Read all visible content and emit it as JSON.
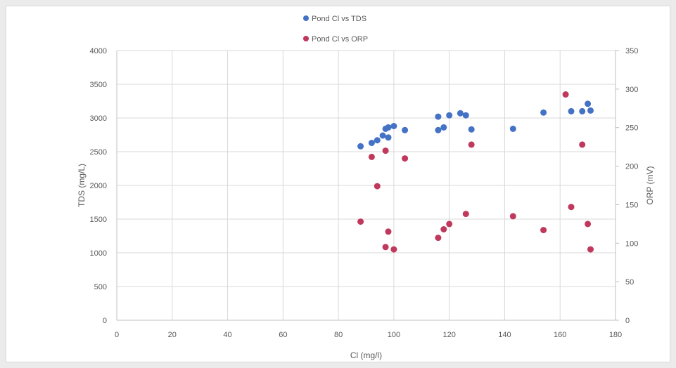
{
  "chart_data": {
    "type": "scatter",
    "xlabel": "Cl (mg/l)",
    "ylabel": "TDS (mg/L)",
    "y2label": "ORP (mV)",
    "xlim": [
      0,
      180
    ],
    "ylim": [
      0,
      4000
    ],
    "y2lim": [
      0,
      350
    ],
    "xticks": [
      "0",
      "20",
      "40",
      "60",
      "80",
      "100",
      "120",
      "140",
      "160",
      "180"
    ],
    "yticks": [
      "0",
      "500",
      "1000",
      "1500",
      "2000",
      "2500",
      "3000",
      "3500",
      "4000"
    ],
    "y2ticks": [
      "0",
      "50",
      "100",
      "150",
      "200",
      "250",
      "300",
      "350"
    ],
    "grid": true,
    "legend_position": "top-center",
    "series": [
      {
        "name": "Pond Cl vs TDS",
        "axis": "left",
        "color": "#4472c4",
        "points": [
          [
            88,
            2580
          ],
          [
            92,
            2630
          ],
          [
            94,
            2670
          ],
          [
            96,
            2740
          ],
          [
            97,
            2840
          ],
          [
            98,
            2860
          ],
          [
            98,
            2710
          ],
          [
            100,
            2880
          ],
          [
            104,
            2820
          ],
          [
            116,
            2820
          ],
          [
            116,
            3020
          ],
          [
            118,
            2860
          ],
          [
            120,
            3040
          ],
          [
            124,
            3070
          ],
          [
            126,
            3040
          ],
          [
            128,
            2830
          ],
          [
            143,
            2840
          ],
          [
            154,
            3080
          ],
          [
            164,
            3100
          ],
          [
            168,
            3100
          ],
          [
            170,
            3210
          ],
          [
            171,
            3110
          ]
        ]
      },
      {
        "name": "Pond Cl vs ORP",
        "axis": "right",
        "color": "#c0385c",
        "points": [
          [
            88,
            128
          ],
          [
            92,
            212
          ],
          [
            94,
            174
          ],
          [
            97,
            220
          ],
          [
            97,
            95
          ],
          [
            98,
            115
          ],
          [
            100,
            92
          ],
          [
            104,
            210
          ],
          [
            116,
            107
          ],
          [
            118,
            118
          ],
          [
            120,
            125
          ],
          [
            126,
            138
          ],
          [
            128,
            228
          ],
          [
            143,
            135
          ],
          [
            154,
            117
          ],
          [
            162,
            293
          ],
          [
            164,
            147
          ],
          [
            168,
            228
          ],
          [
            170,
            125
          ],
          [
            171,
            92
          ]
        ]
      }
    ]
  }
}
